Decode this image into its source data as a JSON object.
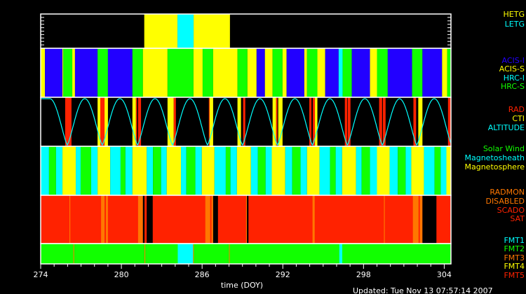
{
  "colors": {
    "yellow": "#ffff00",
    "cyan": "#00ffff",
    "blue": "#2200ff",
    "green": "#11ff00",
    "red": "#ff2200",
    "orange": "#ff7700",
    "black": "#000000",
    "frame": "#ffffff"
  },
  "chart_data": {
    "type": "timeline",
    "xlabel": "time (DOY)",
    "xlim": [
      274,
      304.5
    ],
    "x_ticks": [
      "274",
      "280",
      "286",
      "292",
      "298",
      "304"
    ],
    "x_tick_values": [
      274,
      280,
      286,
      292,
      298,
      304
    ],
    "updated": "Updated: Tue Nov 13 07:57:14 2007",
    "panels": [
      {
        "id": "grating",
        "legend": [
          {
            "label": "HETG",
            "color": "yellow"
          },
          {
            "label": "LETG",
            "color": "cyan"
          }
        ],
        "background": "black",
        "segments": [
          [
            281.7,
            284.17,
            "yellow"
          ],
          [
            284.17,
            285.37,
            "cyan"
          ],
          [
            285.37,
            288.07,
            "yellow"
          ]
        ]
      },
      {
        "id": "instrument",
        "legend": [
          {
            "label": "ACIS-I",
            "color": "blue"
          },
          {
            "label": "ACIS-S",
            "color": "yellow"
          },
          {
            "label": "HRC-I",
            "color": "cyan"
          },
          {
            "label": "HRC-S",
            "color": "green"
          }
        ],
        "background": "black",
        "segments": [
          [
            274,
            274.32,
            "yellow"
          ],
          [
            274.32,
            275.62,
            "blue"
          ],
          [
            275.62,
            275.68,
            "yellow"
          ],
          [
            275.68,
            276.35,
            "green"
          ],
          [
            276.35,
            276.55,
            "yellow"
          ],
          [
            276.55,
            278.23,
            "blue"
          ],
          [
            278.23,
            279.0,
            "green"
          ],
          [
            279.0,
            280.82,
            "blue"
          ],
          [
            280.82,
            281.6,
            "green"
          ],
          [
            281.6,
            283.43,
            "yellow"
          ],
          [
            283.43,
            285.36,
            "green"
          ],
          [
            285.36,
            286.04,
            "yellow"
          ],
          [
            286.04,
            286.82,
            "green"
          ],
          [
            286.82,
            288.63,
            "yellow"
          ],
          [
            288.63,
            289.37,
            "green"
          ],
          [
            289.37,
            290.05,
            "yellow"
          ],
          [
            290.05,
            290.67,
            "blue"
          ],
          [
            290.67,
            291.24,
            "yellow"
          ],
          [
            291.24,
            291.98,
            "green"
          ],
          [
            291.98,
            292.28,
            "yellow"
          ],
          [
            292.28,
            293.6,
            "blue"
          ],
          [
            293.6,
            293.8,
            "yellow"
          ],
          [
            293.8,
            294.57,
            "green"
          ],
          [
            294.57,
            295.15,
            "yellow"
          ],
          [
            295.15,
            296.15,
            "blue"
          ],
          [
            296.15,
            296.45,
            "cyan"
          ],
          [
            296.45,
            297.13,
            "green"
          ],
          [
            297.13,
            298.48,
            "blue"
          ],
          [
            298.48,
            299.0,
            "yellow"
          ],
          [
            299.0,
            299.8,
            "green"
          ],
          [
            299.8,
            301.61,
            "blue"
          ],
          [
            301.61,
            302.38,
            "green"
          ],
          [
            302.38,
            303.84,
            "blue"
          ],
          [
            303.84,
            304.22,
            "yellow"
          ],
          [
            304.22,
            304.5,
            "green"
          ]
        ]
      },
      {
        "id": "radiation",
        "legend": [
          {
            "label": "RAD",
            "color": "red"
          },
          {
            "label": "CTI",
            "color": "yellow"
          },
          {
            "label": "ALTITUDE",
            "color": "cyan"
          }
        ],
        "background": "black",
        "segments": [
          [
            275.82,
            276.29,
            "red"
          ],
          [
            278.23,
            279.0,
            "yellow"
          ],
          [
            278.43,
            278.75,
            "red"
          ],
          [
            280.82,
            281.08,
            "yellow"
          ],
          [
            281.08,
            281.16,
            "red"
          ],
          [
            281.24,
            281.46,
            "red"
          ],
          [
            283.43,
            283.89,
            "yellow"
          ],
          [
            283.89,
            284.05,
            "red"
          ],
          [
            286.5,
            286.56,
            "red"
          ],
          [
            286.56,
            286.82,
            "yellow"
          ],
          [
            288.63,
            288.89,
            "yellow"
          ],
          [
            289.05,
            289.21,
            "red"
          ],
          [
            291.24,
            291.5,
            "yellow"
          ],
          [
            291.5,
            291.6,
            "red"
          ],
          [
            291.66,
            291.98,
            "yellow"
          ],
          [
            293.97,
            294.13,
            "red"
          ],
          [
            294.23,
            294.39,
            "red"
          ],
          [
            294.39,
            294.57,
            "yellow"
          ],
          [
            296.61,
            296.79,
            "red"
          ],
          [
            296.83,
            297.03,
            "red"
          ],
          [
            299.16,
            299.38,
            "red"
          ],
          [
            299.44,
            299.64,
            "red"
          ],
          [
            301.71,
            301.91,
            "red"
          ],
          [
            302.07,
            302.38,
            "yellow"
          ],
          [
            304.28,
            304.5,
            "red"
          ]
        ],
        "altitude_perigees": [
          275.98,
          278.58,
          281.2,
          283.8,
          286.4,
          289.0,
          291.6,
          294.2,
          296.8,
          299.4,
          301.96,
          304.56
        ]
      },
      {
        "id": "environment",
        "legend": [
          {
            "label": "Solar Wind",
            "color": "green"
          },
          {
            "label": "Magnetosheath",
            "color": "cyan"
          },
          {
            "label": "Magnetosphere",
            "color": "yellow"
          }
        ],
        "background": "black",
        "segments": [
          [
            274,
            274.62,
            "cyan"
          ],
          [
            274.62,
            275.14,
            "green"
          ],
          [
            275.14,
            275.62,
            "cyan"
          ],
          [
            275.62,
            276.61,
            "yellow"
          ],
          [
            276.61,
            276.97,
            "cyan"
          ],
          [
            276.97,
            277.75,
            "green"
          ],
          [
            277.75,
            278.23,
            "cyan"
          ],
          [
            278.23,
            279.17,
            "yellow"
          ],
          [
            279.17,
            279.94,
            "cyan"
          ],
          [
            279.94,
            280.3,
            "green"
          ],
          [
            280.3,
            280.82,
            "cyan"
          ],
          [
            280.82,
            281.88,
            "yellow"
          ],
          [
            281.88,
            282.35,
            "cyan"
          ],
          [
            282.35,
            282.95,
            "green"
          ],
          [
            282.95,
            283.37,
            "cyan"
          ],
          [
            283.37,
            284.43,
            "yellow"
          ],
          [
            284.43,
            284.83,
            "cyan"
          ],
          [
            284.83,
            285.5,
            "green"
          ],
          [
            285.5,
            285.98,
            "cyan"
          ],
          [
            285.98,
            286.92,
            "yellow"
          ],
          [
            286.92,
            287.76,
            "cyan"
          ],
          [
            287.76,
            288.11,
            "green"
          ],
          [
            288.11,
            288.59,
            "cyan"
          ],
          [
            288.59,
            289.63,
            "yellow"
          ],
          [
            289.63,
            290.15,
            "cyan"
          ],
          [
            290.15,
            290.72,
            "green"
          ],
          [
            290.72,
            291.18,
            "cyan"
          ],
          [
            291.18,
            292.18,
            "yellow"
          ],
          [
            292.18,
            292.7,
            "cyan"
          ],
          [
            292.7,
            293.32,
            "green"
          ],
          [
            293.32,
            293.8,
            "cyan"
          ],
          [
            293.8,
            294.73,
            "yellow"
          ],
          [
            294.73,
            295.51,
            "cyan"
          ],
          [
            295.51,
            295.93,
            "green"
          ],
          [
            295.93,
            296.41,
            "cyan"
          ],
          [
            296.41,
            297.44,
            "yellow"
          ],
          [
            297.44,
            297.86,
            "cyan"
          ],
          [
            297.86,
            298.48,
            "green"
          ],
          [
            298.48,
            299.0,
            "cyan"
          ],
          [
            299.0,
            299.94,
            "yellow"
          ],
          [
            299.94,
            300.55,
            "cyan"
          ],
          [
            300.55,
            301.13,
            "green"
          ],
          [
            301.13,
            301.55,
            "cyan"
          ],
          [
            301.55,
            302.49,
            "yellow"
          ],
          [
            302.49,
            303.28,
            "cyan"
          ],
          [
            303.28,
            303.74,
            "green"
          ],
          [
            303.74,
            304.16,
            "cyan"
          ],
          [
            304.16,
            304.5,
            "yellow"
          ]
        ]
      },
      {
        "id": "radmon",
        "legend": [
          {
            "label": "RADMON",
            "color": "orange"
          },
          {
            "label": "DISABLED",
            "color": "orange"
          },
          {
            "label": "SCADO",
            "color": "red"
          },
          {
            "label": "SAT",
            "color": "red"
          }
        ],
        "background": "red",
        "segments": [
          [
            276.14,
            276.2,
            "orange"
          ],
          [
            278.49,
            278.75,
            "orange"
          ],
          [
            278.85,
            279.0,
            "orange"
          ],
          [
            281.24,
            281.6,
            "orange"
          ],
          [
            281.6,
            281.72,
            "black"
          ],
          [
            281.88,
            282.33,
            "black"
          ],
          [
            286.24,
            286.6,
            "orange"
          ],
          [
            286.7,
            286.82,
            "orange"
          ],
          [
            286.82,
            287.18,
            "black"
          ],
          [
            289.27,
            289.33,
            "orange"
          ],
          [
            289.33,
            289.45,
            "black"
          ],
          [
            294.21,
            294.37,
            "orange"
          ],
          [
            299.52,
            299.58,
            "orange"
          ],
          [
            301.67,
            302.09,
            "orange"
          ],
          [
            302.19,
            302.38,
            "orange"
          ],
          [
            302.38,
            303.42,
            "black"
          ]
        ]
      },
      {
        "id": "format",
        "legend": [
          {
            "label": "FMT1",
            "color": "cyan"
          },
          {
            "label": "FMT2",
            "color": "green"
          },
          {
            "label": "FMT3",
            "color": "orange"
          },
          {
            "label": "FMT4",
            "color": "yellow"
          },
          {
            "label": "FMT5",
            "color": "red"
          }
        ],
        "background": "green",
        "segments": [
          [
            276.43,
            276.48,
            "orange"
          ],
          [
            281.72,
            281.77,
            "orange"
          ],
          [
            284.19,
            285.33,
            "cyan"
          ],
          [
            285.33,
            285.38,
            "orange"
          ],
          [
            288.0,
            288.05,
            "orange"
          ],
          [
            296.2,
            296.42,
            "cyan"
          ]
        ]
      }
    ]
  }
}
